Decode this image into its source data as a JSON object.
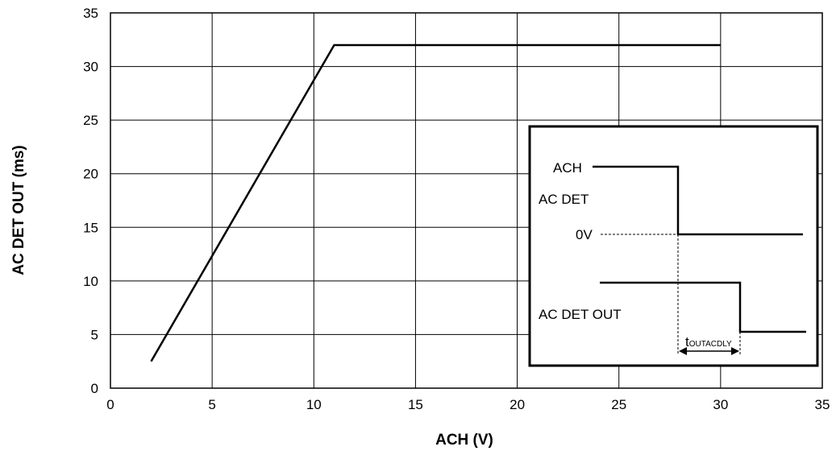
{
  "chart_data": {
    "type": "line",
    "title": "",
    "xlabel": "ACH (V)",
    "ylabel": "AC DET OUT (ms)",
    "xlim": [
      0,
      35
    ],
    "ylim": [
      0,
      35
    ],
    "xticks": [
      "0",
      "5",
      "10",
      "15",
      "20",
      "25",
      "30",
      "35"
    ],
    "yticks": [
      "0",
      "5",
      "10",
      "15",
      "20",
      "25",
      "30",
      "35"
    ],
    "grid": true,
    "series": [
      {
        "x": [
          2,
          11,
          30
        ],
        "y": [
          2.5,
          32,
          32
        ]
      }
    ]
  },
  "inset": {
    "ach_label": "ACH",
    "acdet_label": "AC DET",
    "zero_label": "0V",
    "acdetout_label": "AC DET OUT",
    "delay_label_main": "t",
    "delay_label_sub": "OUTACDLY"
  }
}
